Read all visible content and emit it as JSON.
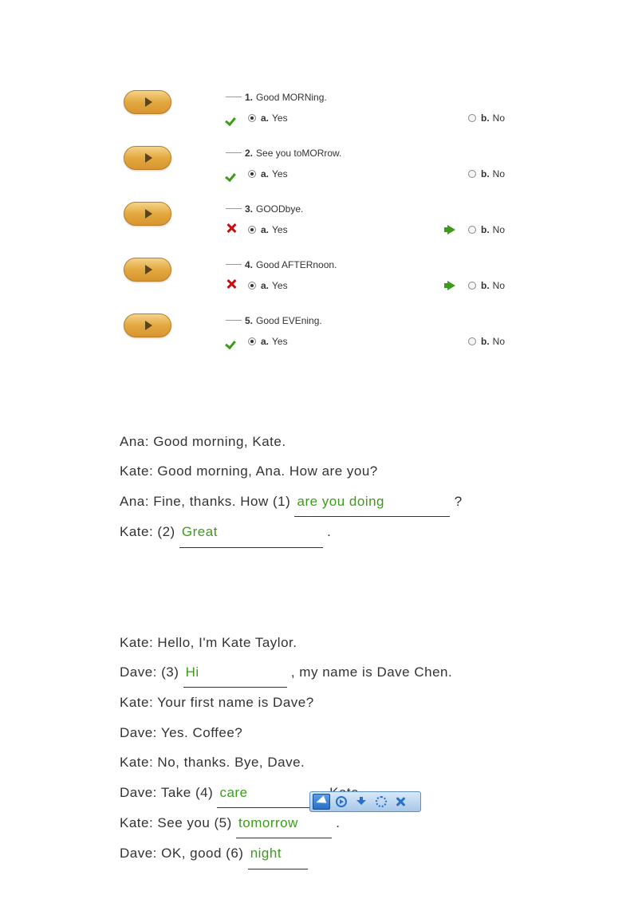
{
  "quiz": {
    "questions": [
      {
        "num": "1.",
        "text": "Good MORNing.",
        "result": "correct",
        "a_selected": true,
        "b_arrow": false
      },
      {
        "num": "2.",
        "text": "See you toMORrow.",
        "result": "correct",
        "a_selected": true,
        "b_arrow": false
      },
      {
        "num": "3.",
        "text": "GOODbye.",
        "result": "wrong",
        "a_selected": true,
        "b_arrow": true
      },
      {
        "num": "4.",
        "text": "Good AFTERnoon.",
        "result": "wrong",
        "a_selected": true,
        "b_arrow": true
      },
      {
        "num": "5.",
        "text": "Good EVEning.",
        "result": "correct",
        "a_selected": true,
        "b_arrow": false
      }
    ],
    "opt_a_letter": "a.",
    "opt_a_text": "Yes",
    "opt_b_letter": "b.",
    "opt_b_text": "No"
  },
  "dialogue1": {
    "line1": "Ana: Good morning,  Kate.",
    "line2": "Kate: Good morning,  Ana. How are you?",
    "line3_pre": "Ana: Fine,  thanks. How (1) ",
    "line3_blank": "are you doing",
    "line3_post": " ?",
    "line4_pre": "Kate: (2) ",
    "line4_blank": "Great",
    "line4_post": " ."
  },
  "dialogue2": {
    "line1": "Kate: Hello,  I'm Kate Taylor.",
    "line2_pre": "Dave: (3) ",
    "line2_blank": "Hi",
    "line2_post": " , my name is Dave Chen.",
    "line3": "Kate: Your first  name is Dave?",
    "line4": "Dave: Yes. Coffee?",
    "line5": "Kate: No, thanks. Bye, Dave.",
    "line6_pre": "Dave: Take (4) ",
    "line6_blank": "care",
    "line6_post": " , Kate.",
    "line7_pre": "Kate: See you (5) ",
    "line7_blank": "tomorrow",
    "line7_post": "  .",
    "line8_pre": "Dave: OK, good (6) ",
    "line8_blank": "night",
    "line8_post": ""
  },
  "blank_widths": {
    "are_you_doing": "195px",
    "great": "180px",
    "hi": "130px",
    "care": "125px",
    "tomorrow": "120px",
    "night": "75px"
  },
  "colors": {
    "green": "#3c9c1a",
    "red": "#c91010",
    "play_bg": "#e3a83f",
    "toolbar_blue": "#2870c8"
  }
}
